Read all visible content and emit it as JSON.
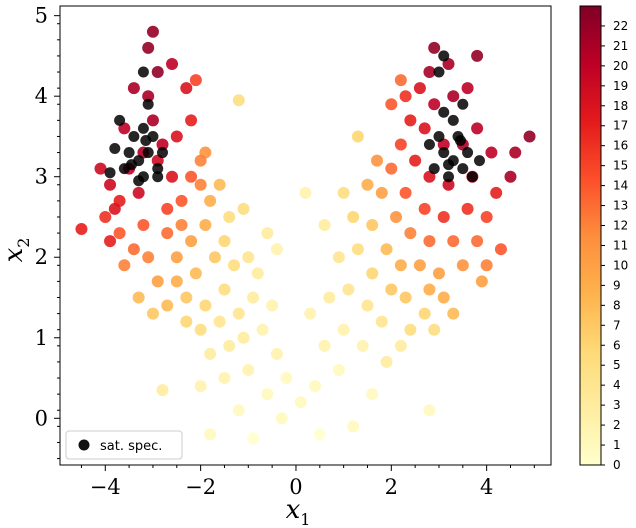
{
  "chart_data": {
    "type": "scatter",
    "title": "",
    "xlabel": "x",
    "xlabel_sub": "1",
    "ylabel": "x",
    "ylabel_sub": "2",
    "xlim": [
      -4.95,
      5.35
    ],
    "ylim": [
      -0.58,
      5.12
    ],
    "xticks": [
      -4,
      -2,
      0,
      2,
      4
    ],
    "yticks": [
      0,
      1,
      2,
      3,
      4,
      5
    ],
    "xtick_labels": [
      "−4",
      "−2",
      "0",
      "2",
      "4"
    ],
    "ytick_labels": [
      "0",
      "1",
      "2",
      "3",
      "4",
      "5"
    ],
    "colorbar": {
      "colormap": "YlOrRd",
      "range": [
        0,
        23
      ],
      "ticks": [
        0,
        1,
        2,
        3,
        4,
        5,
        6,
        7,
        8,
        9,
        10,
        11,
        12,
        13,
        14,
        15,
        16,
        17,
        18,
        19,
        20,
        21,
        22
      ],
      "tick_labels": [
        "0",
        "1",
        "2",
        "3",
        "4",
        "5",
        "6",
        "7",
        "8",
        "9",
        "10",
        "11",
        "12",
        "13",
        "14",
        "15",
        "16",
        "17",
        "18",
        "19",
        "20",
        "21",
        "22"
      ],
      "stops": [
        "#ffffcc",
        "#ffeda0",
        "#fed976",
        "#feb24c",
        "#fd8d3c",
        "#fc4e2a",
        "#e31a1c",
        "#bd0026",
        "#800026"
      ]
    },
    "series": [
      {
        "name": "",
        "color_by": "value",
        "points": [
          {
            "x": -3.2,
            "y": 3.3,
            "v": 21
          },
          {
            "x": -3.5,
            "y": 3.1,
            "v": 20
          },
          {
            "x": -2.8,
            "y": 3.4,
            "v": 20
          },
          {
            "x": -3.0,
            "y": 3.7,
            "v": 21
          },
          {
            "x": -3.6,
            "y": 3.6,
            "v": 20
          },
          {
            "x": -2.6,
            "y": 3.0,
            "v": 18
          },
          {
            "x": -3.3,
            "y": 2.8,
            "v": 19
          },
          {
            "x": -3.9,
            "y": 2.9,
            "v": 19
          },
          {
            "x": -3.1,
            "y": 4.0,
            "v": 21
          },
          {
            "x": -2.9,
            "y": 4.3,
            "v": 22
          },
          {
            "x": -3.1,
            "y": 4.6,
            "v": 22
          },
          {
            "x": -3.0,
            "y": 4.8,
            "v": 22
          },
          {
            "x": -2.6,
            "y": 4.4,
            "v": 20
          },
          {
            "x": -3.4,
            "y": 4.1,
            "v": 21
          },
          {
            "x": -2.3,
            "y": 4.1,
            "v": 18
          },
          {
            "x": -2.2,
            "y": 3.7,
            "v": 17
          },
          {
            "x": -2.5,
            "y": 3.5,
            "v": 18
          },
          {
            "x": -2.9,
            "y": 3.2,
            "v": 19
          },
          {
            "x": -4.1,
            "y": 3.1,
            "v": 19
          },
          {
            "x": -3.8,
            "y": 2.6,
            "v": 18
          },
          {
            "x": -3.9,
            "y": 2.2,
            "v": 17
          },
          {
            "x": -4.5,
            "y": 2.35,
            "v": 17
          },
          {
            "x": -4.0,
            "y": 2.5,
            "v": 16
          },
          {
            "x": -3.7,
            "y": 2.7,
            "v": 17
          },
          {
            "x": -2.7,
            "y": 2.6,
            "v": 15
          },
          {
            "x": -2.4,
            "y": 2.7,
            "v": 14
          },
          {
            "x": -2.2,
            "y": 3.0,
            "v": 14
          },
          {
            "x": -2.0,
            "y": 3.2,
            "v": 12
          },
          {
            "x": -1.9,
            "y": 3.3,
            "v": 11
          },
          {
            "x": -2.7,
            "y": 2.3,
            "v": 13
          },
          {
            "x": -2.4,
            "y": 2.4,
            "v": 12
          },
          {
            "x": -3.2,
            "y": 2.4,
            "v": 14
          },
          {
            "x": -3.4,
            "y": 2.1,
            "v": 13
          },
          {
            "x": -3.6,
            "y": 1.9,
            "v": 12
          },
          {
            "x": -3.1,
            "y": 2.0,
            "v": 12
          },
          {
            "x": -2.5,
            "y": 2.0,
            "v": 10
          },
          {
            "x": -2.2,
            "y": 2.2,
            "v": 10
          },
          {
            "x": -1.9,
            "y": 2.4,
            "v": 9
          },
          {
            "x": -1.8,
            "y": 2.7,
            "v": 9
          },
          {
            "x": -2.9,
            "y": 1.7,
            "v": 10
          },
          {
            "x": -2.5,
            "y": 1.7,
            "v": 9
          },
          {
            "x": -2.1,
            "y": 1.8,
            "v": 8
          },
          {
            "x": -1.7,
            "y": 2.0,
            "v": 7
          },
          {
            "x": -1.5,
            "y": 2.2,
            "v": 6
          },
          {
            "x": -1.4,
            "y": 2.5,
            "v": 5
          },
          {
            "x": -2.3,
            "y": 1.5,
            "v": 7
          },
          {
            "x": -1.9,
            "y": 1.4,
            "v": 6
          },
          {
            "x": -1.5,
            "y": 1.6,
            "v": 5
          },
          {
            "x": -1.3,
            "y": 1.9,
            "v": 5
          },
          {
            "x": -1.0,
            "y": 2.0,
            "v": 4
          },
          {
            "x": -3.0,
            "y": 1.3,
            "v": 7
          },
          {
            "x": -2.7,
            "y": 1.4,
            "v": 8
          },
          {
            "x": -2.0,
            "y": 1.1,
            "v": 5
          },
          {
            "x": -1.6,
            "y": 1.2,
            "v": 4
          },
          {
            "x": -1.2,
            "y": 1.3,
            "v": 4
          },
          {
            "x": -0.9,
            "y": 1.5,
            "v": 3
          },
          {
            "x": -0.8,
            "y": 1.8,
            "v": 3
          },
          {
            "x": -1.8,
            "y": 0.8,
            "v": 3
          },
          {
            "x": -1.4,
            "y": 0.9,
            "v": 3
          },
          {
            "x": -1.1,
            "y": 1.0,
            "v": 3
          },
          {
            "x": -0.7,
            "y": 1.1,
            "v": 2
          },
          {
            "x": -0.5,
            "y": 1.4,
            "v": 2
          },
          {
            "x": -0.4,
            "y": 0.8,
            "v": 2
          },
          {
            "x": -1.0,
            "y": 0.6,
            "v": 2
          },
          {
            "x": -1.5,
            "y": 0.5,
            "v": 2
          },
          {
            "x": -2.0,
            "y": 0.4,
            "v": 2
          },
          {
            "x": -0.6,
            "y": 0.3,
            "v": 1
          },
          {
            "x": -0.2,
            "y": 0.5,
            "v": 1
          },
          {
            "x": 0.1,
            "y": 0.2,
            "v": 1
          },
          {
            "x": 0.4,
            "y": 0.4,
            "v": 1
          },
          {
            "x": -0.3,
            "y": 0.0,
            "v": 1
          },
          {
            "x": -1.2,
            "y": 0.1,
            "v": 1
          },
          {
            "x": -1.8,
            "y": -0.2,
            "v": 1
          },
          {
            "x": -0.9,
            "y": -0.25,
            "v": 0
          },
          {
            "x": 0.5,
            "y": -0.2,
            "v": 0
          },
          {
            "x": 1.2,
            "y": -0.1,
            "v": 1
          },
          {
            "x": 1.6,
            "y": 0.3,
            "v": 1
          },
          {
            "x": 0.9,
            "y": 0.6,
            "v": 1
          },
          {
            "x": 0.6,
            "y": 0.9,
            "v": 2
          },
          {
            "x": 1.0,
            "y": 1.1,
            "v": 2
          },
          {
            "x": 1.4,
            "y": 0.9,
            "v": 2
          },
          {
            "x": 1.9,
            "y": 0.7,
            "v": 3
          },
          {
            "x": 2.2,
            "y": 0.9,
            "v": 3
          },
          {
            "x": 0.3,
            "y": 1.3,
            "v": 2
          },
          {
            "x": 0.7,
            "y": 1.5,
            "v": 3
          },
          {
            "x": 1.1,
            "y": 1.6,
            "v": 4
          },
          {
            "x": 1.5,
            "y": 1.4,
            "v": 4
          },
          {
            "x": 1.8,
            "y": 1.2,
            "v": 4
          },
          {
            "x": 2.4,
            "y": 1.1,
            "v": 5
          },
          {
            "x": 2.7,
            "y": 1.3,
            "v": 6
          },
          {
            "x": 0.9,
            "y": 2.0,
            "v": 4
          },
          {
            "x": 1.3,
            "y": 2.1,
            "v": 5
          },
          {
            "x": 1.6,
            "y": 1.8,
            "v": 6
          },
          {
            "x": 2.0,
            "y": 1.6,
            "v": 7
          },
          {
            "x": 2.3,
            "y": 1.5,
            "v": 7
          },
          {
            "x": 2.8,
            "y": 1.6,
            "v": 9
          },
          {
            "x": 3.1,
            "y": 1.5,
            "v": 9
          },
          {
            "x": 1.2,
            "y": 2.5,
            "v": 6
          },
          {
            "x": 1.6,
            "y": 2.4,
            "v": 7
          },
          {
            "x": 1.9,
            "y": 2.1,
            "v": 8
          },
          {
            "x": 2.2,
            "y": 1.9,
            "v": 9
          },
          {
            "x": 2.6,
            "y": 1.9,
            "v": 10
          },
          {
            "x": 3.0,
            "y": 1.8,
            "v": 10
          },
          {
            "x": 3.5,
            "y": 1.9,
            "v": 11
          },
          {
            "x": 1.5,
            "y": 2.9,
            "v": 9
          },
          {
            "x": 1.8,
            "y": 2.8,
            "v": 10
          },
          {
            "x": 2.1,
            "y": 2.5,
            "v": 11
          },
          {
            "x": 2.4,
            "y": 2.3,
            "v": 12
          },
          {
            "x": 2.8,
            "y": 2.2,
            "v": 13
          },
          {
            "x": 3.3,
            "y": 2.2,
            "v": 13
          },
          {
            "x": 3.8,
            "y": 2.2,
            "v": 13
          },
          {
            "x": 4.0,
            "y": 2.5,
            "v": 15
          },
          {
            "x": 1.7,
            "y": 3.2,
            "v": 11
          },
          {
            "x": 2.0,
            "y": 3.1,
            "v": 13
          },
          {
            "x": 2.3,
            "y": 2.8,
            "v": 14
          },
          {
            "x": 2.7,
            "y": 2.6,
            "v": 15
          },
          {
            "x": 3.1,
            "y": 2.5,
            "v": 16
          },
          {
            "x": 3.6,
            "y": 2.6,
            "v": 16
          },
          {
            "x": 4.2,
            "y": 2.8,
            "v": 17
          },
          {
            "x": 2.2,
            "y": 3.4,
            "v": 15
          },
          {
            "x": 2.5,
            "y": 3.2,
            "v": 17
          },
          {
            "x": 2.8,
            "y": 3.0,
            "v": 18
          },
          {
            "x": 3.2,
            "y": 2.9,
            "v": 19
          },
          {
            "x": 3.7,
            "y": 3.0,
            "v": 19
          },
          {
            "x": 4.1,
            "y": 3.3,
            "v": 20
          },
          {
            "x": 4.5,
            "y": 3.0,
            "v": 21
          },
          {
            "x": 4.9,
            "y": 3.5,
            "v": 22
          },
          {
            "x": 4.6,
            "y": 3.3,
            "v": 21
          },
          {
            "x": 2.4,
            "y": 3.7,
            "v": 17
          },
          {
            "x": 2.7,
            "y": 3.6,
            "v": 18
          },
          {
            "x": 3.1,
            "y": 3.4,
            "v": 20
          },
          {
            "x": 3.5,
            "y": 3.4,
            "v": 21
          },
          {
            "x": 3.8,
            "y": 3.6,
            "v": 20
          },
          {
            "x": 2.3,
            "y": 4.0,
            "v": 16
          },
          {
            "x": 2.6,
            "y": 4.1,
            "v": 18
          },
          {
            "x": 2.9,
            "y": 3.9,
            "v": 20
          },
          {
            "x": 3.3,
            "y": 4.0,
            "v": 21
          },
          {
            "x": 3.6,
            "y": 4.1,
            "v": 20
          },
          {
            "x": 2.8,
            "y": 4.3,
            "v": 21
          },
          {
            "x": 3.2,
            "y": 4.4,
            "v": 21
          },
          {
            "x": 3.8,
            "y": 4.5,
            "v": 22
          },
          {
            "x": 2.9,
            "y": 4.6,
            "v": 22
          },
          {
            "x": 2.0,
            "y": 3.9,
            "v": 14
          },
          {
            "x": 2.2,
            "y": 4.2,
            "v": 13
          },
          {
            "x": -2.1,
            "y": 4.2,
            "v": 15
          },
          {
            "x": -1.2,
            "y": 3.95,
            "v": 5
          },
          {
            "x": -2.3,
            "y": 1.2,
            "v": 6
          },
          {
            "x": 1.3,
            "y": 3.5,
            "v": 6
          },
          {
            "x": 2.9,
            "y": 1.1,
            "v": 5
          },
          {
            "x": 3.9,
            "y": 1.7,
            "v": 10
          },
          {
            "x": 2.8,
            "y": 0.1,
            "v": 1
          },
          {
            "x": 0.2,
            "y": 2.8,
            "v": 2
          },
          {
            "x": -0.4,
            "y": 2.1,
            "v": 2
          },
          {
            "x": -2.8,
            "y": 0.35,
            "v": 3
          },
          {
            "x": -3.3,
            "y": 1.5,
            "v": 8
          },
          {
            "x": -3.7,
            "y": 2.3,
            "v": 14
          },
          {
            "x": -2.0,
            "y": 2.9,
            "v": 12
          },
          {
            "x": -1.6,
            "y": 2.9,
            "v": 8
          },
          {
            "x": -1.1,
            "y": 2.6,
            "v": 5
          },
          {
            "x": -0.6,
            "y": 2.3,
            "v": 3
          },
          {
            "x": 0.6,
            "y": 2.4,
            "v": 3
          },
          {
            "x": 1.0,
            "y": 2.8,
            "v": 5
          },
          {
            "x": 4.3,
            "y": 2.1,
            "v": 14
          },
          {
            "x": 4.0,
            "y": 1.9,
            "v": 12
          },
          {
            "x": 3.3,
            "y": 1.3,
            "v": 8
          }
        ]
      },
      {
        "name": "sat. spec.",
        "color": "#000000",
        "points": [
          {
            "x": -3.5,
            "y": 3.3
          },
          {
            "x": -3.3,
            "y": 3.2
          },
          {
            "x": -3.1,
            "y": 3.3
          },
          {
            "x": -2.9,
            "y": 3.1
          },
          {
            "x": -3.2,
            "y": 3.0
          },
          {
            "x": -3.4,
            "y": 3.5
          },
          {
            "x": -3.0,
            "y": 3.5
          },
          {
            "x": -2.8,
            "y": 3.3
          },
          {
            "x": -3.6,
            "y": 3.1
          },
          {
            "x": -3.8,
            "y": 3.35
          },
          {
            "x": -3.7,
            "y": 3.7
          },
          {
            "x": -3.2,
            "y": 3.6
          },
          {
            "x": -3.1,
            "y": 3.9
          },
          {
            "x": -3.3,
            "y": 2.95
          },
          {
            "x": -3.9,
            "y": 3.05
          },
          {
            "x": -3.2,
            "y": 4.3
          },
          {
            "x": -2.9,
            "y": 3.0
          },
          {
            "x": -3.45,
            "y": 3.15
          },
          {
            "x": -3.15,
            "y": 3.45
          },
          {
            "x": 2.9,
            "y": 3.1
          },
          {
            "x": 3.1,
            "y": 3.3
          },
          {
            "x": 3.3,
            "y": 3.2
          },
          {
            "x": 3.5,
            "y": 3.1
          },
          {
            "x": 3.2,
            "y": 3.0
          },
          {
            "x": 3.0,
            "y": 3.5
          },
          {
            "x": 3.4,
            "y": 3.5
          },
          {
            "x": 3.6,
            "y": 3.3
          },
          {
            "x": 3.3,
            "y": 3.7
          },
          {
            "x": 3.1,
            "y": 3.8
          },
          {
            "x": 3.5,
            "y": 3.9
          },
          {
            "x": 3.0,
            "y": 4.3
          },
          {
            "x": 3.1,
            "y": 4.5
          },
          {
            "x": 3.7,
            "y": 3.0
          },
          {
            "x": 2.8,
            "y": 3.4
          },
          {
            "x": 3.2,
            "y": 3.15
          },
          {
            "x": 3.45,
            "y": 3.45
          },
          {
            "x": 3.85,
            "y": 3.2
          }
        ]
      }
    ],
    "legend": {
      "placement": "lower-left",
      "label": "sat. spec."
    }
  }
}
